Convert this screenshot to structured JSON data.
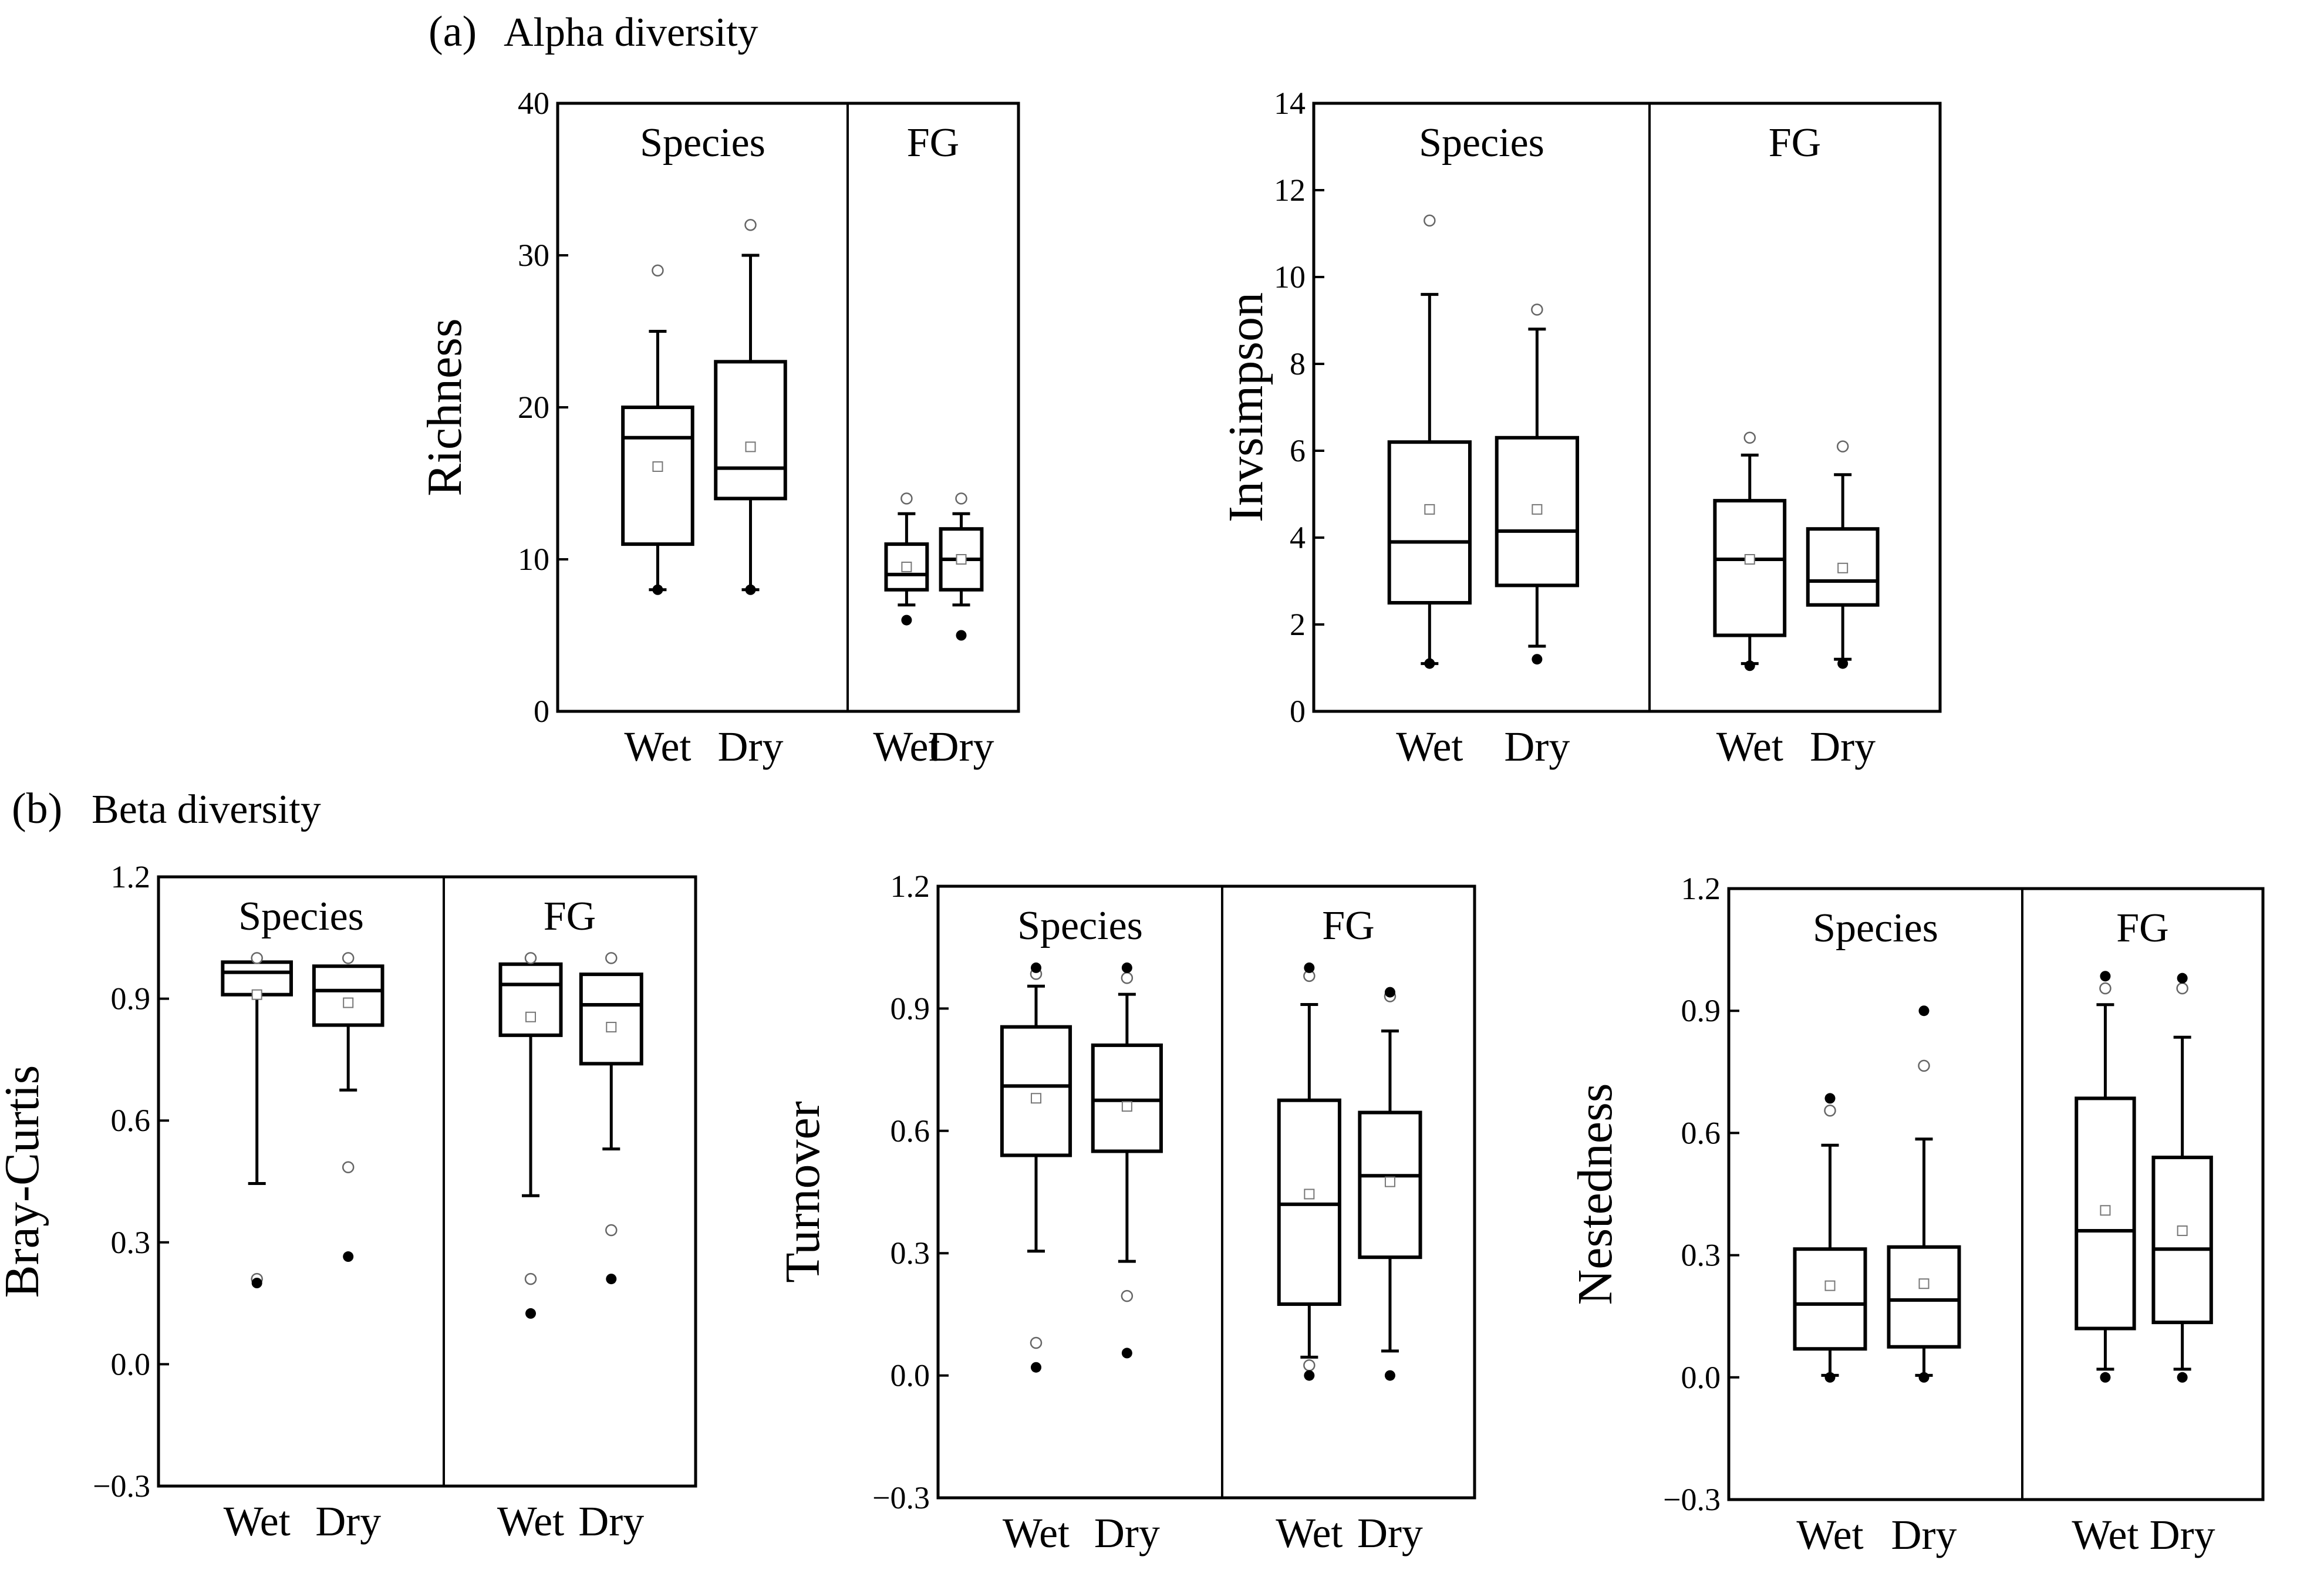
{
  "sections": {
    "alpha": {
      "letter": "(a)",
      "title": "Alpha diversity"
    },
    "beta": {
      "letter": "(b)",
      "title": "Beta diversity"
    }
  },
  "chart_data": [
    {
      "id": "richness",
      "type": "box",
      "ylabel": "Richness",
      "ylim": [
        0,
        40
      ],
      "yticks": [
        0,
        10,
        20,
        30,
        40
      ],
      "ytick_labels": [
        "0",
        "10",
        "20",
        "30",
        "40"
      ],
      "panels": [
        {
          "label": "Species",
          "boxes": [
            {
              "group": "Wet",
              "q1": 11,
              "median": 18,
              "q3": 20,
              "whisker_low": 8,
              "whisker_high": 25,
              "mean": 16.1,
              "outliers_open": [
                29
              ],
              "outliers_filled": [
                8
              ]
            },
            {
              "group": "Dry",
              "q1": 14,
              "median": 16,
              "q3": 23,
              "whisker_low": 8,
              "whisker_high": 30,
              "mean": 17.4,
              "outliers_open": [
                32
              ],
              "outliers_filled": [
                8
              ]
            }
          ]
        },
        {
          "label": "FG",
          "boxes": [
            {
              "group": "Wet",
              "q1": 8,
              "median": 9,
              "q3": 11,
              "whisker_low": 7,
              "whisker_high": 13,
              "mean": 9.5,
              "outliers_open": [
                14
              ],
              "outliers_filled": [
                6
              ]
            },
            {
              "group": "Dry",
              "q1": 8,
              "median": 10,
              "q3": 12,
              "whisker_low": 7,
              "whisker_high": 13,
              "mean": 10,
              "outliers_open": [
                14
              ],
              "outliers_filled": [
                5
              ]
            }
          ]
        }
      ]
    },
    {
      "id": "invsimpson",
      "type": "box",
      "ylabel": "Invsimpson",
      "ylim": [
        0,
        14
      ],
      "yticks": [
        0,
        2,
        4,
        6,
        8,
        10,
        12,
        14
      ],
      "ytick_labels": [
        "0",
        "2",
        "4",
        "6",
        "8",
        "10",
        "12",
        "14"
      ],
      "panels": [
        {
          "label": "Species",
          "boxes": [
            {
              "group": "Wet",
              "q1": 2.5,
              "median": 3.9,
              "q3": 6.2,
              "whisker_low": 1.1,
              "whisker_high": 9.6,
              "mean": 4.65,
              "outliers_open": [
                11.3
              ],
              "outliers_filled": [
                1.1
              ]
            },
            {
              "group": "Dry",
              "q1": 2.9,
              "median": 4.15,
              "q3": 6.3,
              "whisker_low": 1.5,
              "whisker_high": 8.8,
              "mean": 4.65,
              "outliers_open": [
                9.25
              ],
              "outliers_filled": [
                1.2
              ]
            }
          ]
        },
        {
          "label": "FG",
          "boxes": [
            {
              "group": "Wet",
              "q1": 1.75,
              "median": 3.5,
              "q3": 4.85,
              "whisker_low": 1.1,
              "whisker_high": 5.9,
              "mean": 3.5,
              "outliers_open": [
                6.3
              ],
              "outliers_filled": [
                1.05
              ]
            },
            {
              "group": "Dry",
              "q1": 2.45,
              "median": 3.0,
              "q3": 4.2,
              "whisker_low": 1.2,
              "whisker_high": 5.45,
              "mean": 3.3,
              "outliers_open": [
                6.1
              ],
              "outliers_filled": [
                1.1
              ]
            }
          ]
        }
      ]
    },
    {
      "id": "bray_curtis",
      "type": "box",
      "ylabel": "Bray-Curtis",
      "ylim": [
        -0.3,
        1.2
      ],
      "yticks": [
        -0.3,
        0,
        0.3,
        0.6,
        0.9,
        1.2
      ],
      "ytick_labels": [
        "−0.3",
        "0.0",
        "0.3",
        "0.6",
        "0.9",
        "1.2"
      ],
      "panels": [
        {
          "label": "Species",
          "boxes": [
            {
              "group": "Wet",
              "q1": 0.91,
              "median": 0.965,
              "q3": 0.99,
              "whisker_low": 0.445,
              "whisker_high": 0.99,
              "mean": 0.91,
              "outliers_open": [
                0.21,
                1.0
              ],
              "outliers_filled": [
                0.2
              ]
            },
            {
              "group": "Dry",
              "q1": 0.835,
              "median": 0.92,
              "q3": 0.98,
              "whisker_low": 0.675,
              "whisker_high": 0.98,
              "mean": 0.89,
              "outliers_open": [
                0.485,
                1.0
              ],
              "outliers_filled": [
                0.265
              ]
            }
          ]
        },
        {
          "label": "FG",
          "boxes": [
            {
              "group": "Wet",
              "q1": 0.81,
              "median": 0.935,
              "q3": 0.985,
              "whisker_low": 0.415,
              "whisker_high": 0.985,
              "mean": 0.855,
              "outliers_open": [
                0.21,
                1.0
              ],
              "outliers_filled": [
                0.125
              ]
            },
            {
              "group": "Dry",
              "q1": 0.74,
              "median": 0.885,
              "q3": 0.96,
              "whisker_low": 0.53,
              "whisker_high": 0.96,
              "mean": 0.83,
              "outliers_open": [
                0.33,
                1.0
              ],
              "outliers_filled": [
                0.21
              ]
            }
          ]
        }
      ]
    },
    {
      "id": "turnover",
      "type": "box",
      "ylabel": "Turnover",
      "ylim": [
        -0.3,
        1.2
      ],
      "yticks": [
        -0.3,
        0,
        0.3,
        0.6,
        0.9,
        1.2
      ],
      "ytick_labels": [
        "−0.3",
        "0.0",
        "0.3",
        "0.6",
        "0.9",
        "1.2"
      ],
      "panels": [
        {
          "label": "Species",
          "boxes": [
            {
              "group": "Wet",
              "q1": 0.54,
              "median": 0.71,
              "q3": 0.855,
              "whisker_low": 0.305,
              "whisker_high": 0.955,
              "mean": 0.68,
              "outliers_open": [
                0.08,
                0.985
              ],
              "outliers_filled": [
                0.02,
                1.0
              ]
            },
            {
              "group": "Dry",
              "q1": 0.55,
              "median": 0.675,
              "q3": 0.81,
              "whisker_low": 0.28,
              "whisker_high": 0.935,
              "mean": 0.66,
              "outliers_open": [
                0.195,
                0.975
              ],
              "outliers_filled": [
                0.055,
                1.0
              ]
            }
          ]
        },
        {
          "label": "FG",
          "boxes": [
            {
              "group": "Wet",
              "q1": 0.175,
              "median": 0.42,
              "q3": 0.675,
              "whisker_low": 0.045,
              "whisker_high": 0.91,
              "mean": 0.445,
              "outliers_open": [
                0.025,
                0.98
              ],
              "outliers_filled": [
                0.0,
                1.0
              ]
            },
            {
              "group": "Dry",
              "q1": 0.29,
              "median": 0.49,
              "q3": 0.645,
              "whisker_low": 0.06,
              "whisker_high": 0.845,
              "mean": 0.475,
              "outliers_open": [
                0.93
              ],
              "outliers_filled": [
                0.0,
                0.94
              ]
            }
          ]
        }
      ]
    },
    {
      "id": "nestedness",
      "type": "box",
      "ylabel": "Nestedness",
      "ylim": [
        -0.3,
        1.2
      ],
      "yticks": [
        -0.3,
        0,
        0.3,
        0.6,
        0.9,
        1.2
      ],
      "ytick_labels": [
        "−0.3",
        "0.0",
        "0.3",
        "0.6",
        "0.9",
        "1.2"
      ],
      "panels": [
        {
          "label": "Species",
          "boxes": [
            {
              "group": "Wet",
              "q1": 0.07,
              "median": 0.18,
              "q3": 0.315,
              "whisker_low": 0.005,
              "whisker_high": 0.57,
              "mean": 0.225,
              "outliers_open": [
                0.655
              ],
              "outliers_filled": [
                0.0,
                0.685
              ]
            },
            {
              "group": "Dry",
              "q1": 0.075,
              "median": 0.19,
              "q3": 0.32,
              "whisker_low": 0.005,
              "whisker_high": 0.585,
              "mean": 0.23,
              "outliers_open": [
                0.765
              ],
              "outliers_filled": [
                0.0,
                0.9
              ]
            }
          ]
        },
        {
          "label": "FG",
          "boxes": [
            {
              "group": "Wet",
              "q1": 0.12,
              "median": 0.36,
              "q3": 0.685,
              "whisker_low": 0.02,
              "whisker_high": 0.915,
              "mean": 0.41,
              "outliers_open": [
                0.955
              ],
              "outliers_filled": [
                0.0,
                0.985
              ]
            },
            {
              "group": "Dry",
              "q1": 0.135,
              "median": 0.315,
              "q3": 0.54,
              "whisker_low": 0.02,
              "whisker_high": 0.835,
              "mean": 0.36,
              "outliers_open": [
                0.955
              ],
              "outliers_filled": [
                0.0,
                0.98
              ]
            }
          ]
        }
      ]
    }
  ]
}
